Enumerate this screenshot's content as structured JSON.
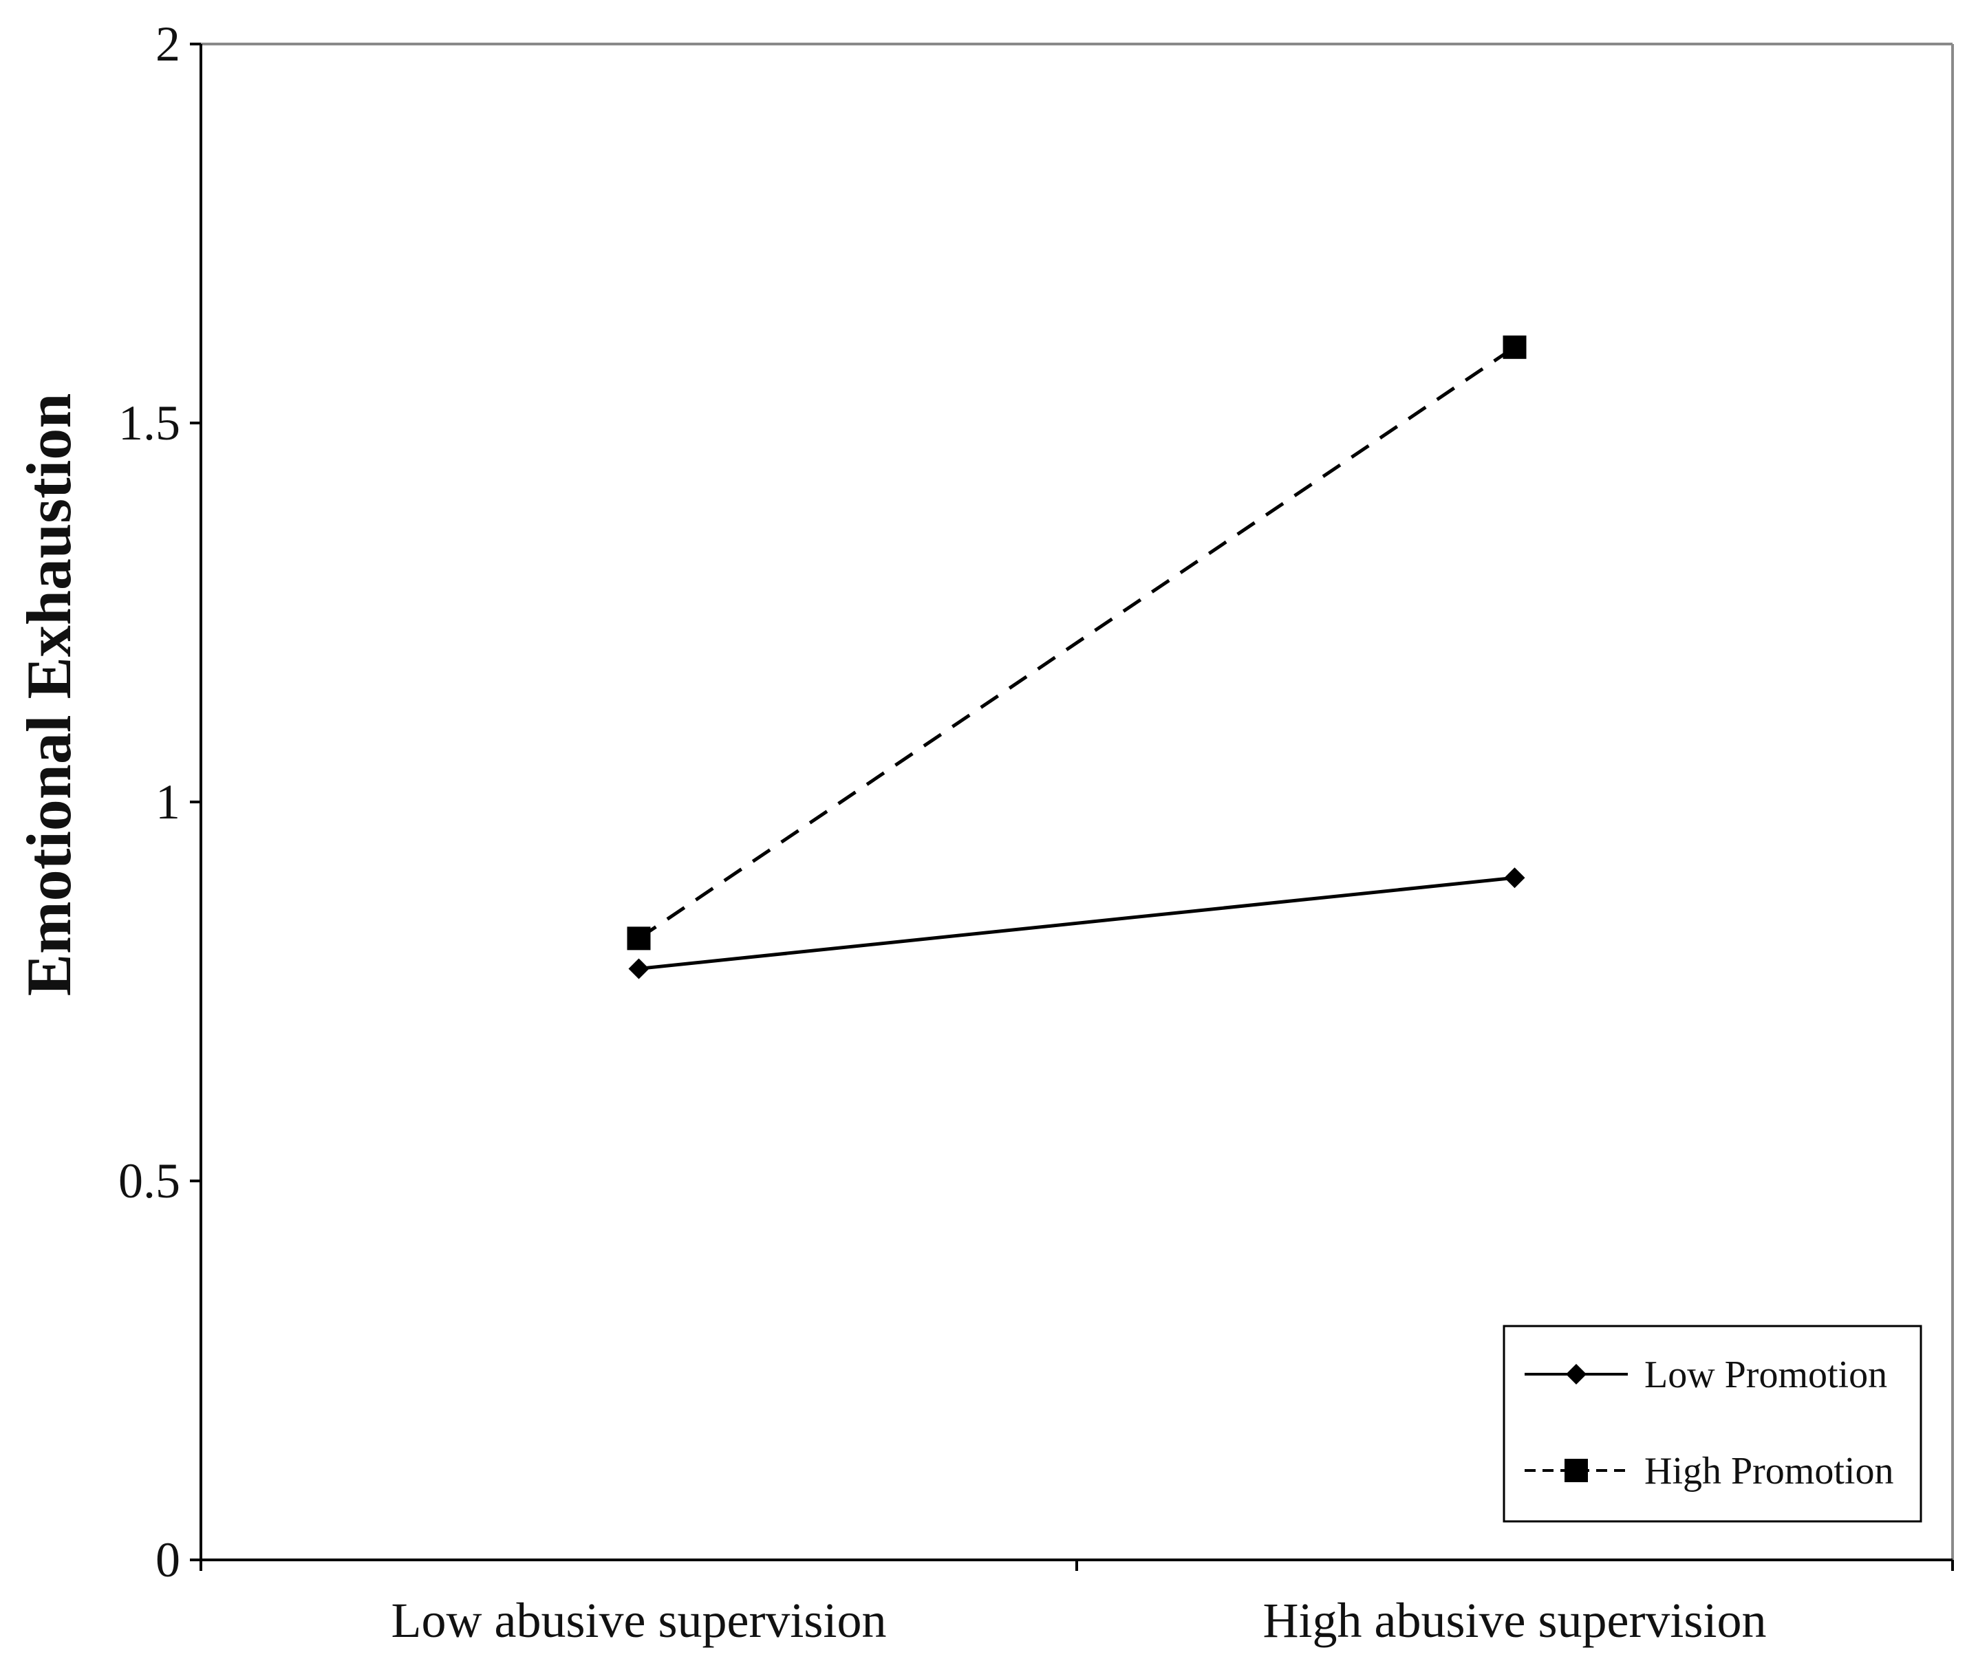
{
  "chart_data": {
    "type": "line",
    "categories": [
      "Low abusive supervision",
      "High abusive supervision"
    ],
    "series": [
      {
        "name": "Low Promotion",
        "values": [
          0.78,
          0.9
        ],
        "marker": "diamond",
        "dash": "solid",
        "color": "#000000"
      },
      {
        "name": "High Promotion",
        "values": [
          0.82,
          1.6
        ],
        "marker": "square",
        "dash": "dashed",
        "color": "#000000"
      }
    ],
    "ylabel": "Emotional Exhaustion",
    "xlabel": "",
    "ylim": [
      0,
      2
    ],
    "yticks": [
      "0",
      "0.5",
      "1",
      "1.5",
      "2"
    ],
    "grid": false,
    "legend_position": "bottom-right"
  }
}
